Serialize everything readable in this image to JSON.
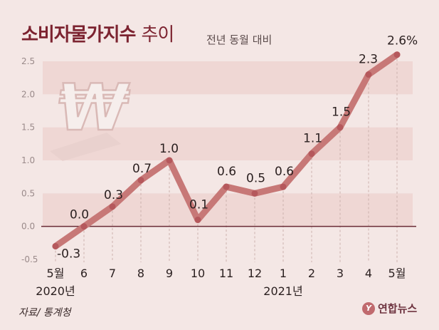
{
  "header": {
    "title_bold": "소비자물가지수",
    "title_light": "추이",
    "subtitle": "전년 동월 대비"
  },
  "footer": {
    "source": "자료/ 통계청",
    "logo": "연합뉴스"
  },
  "colors": {
    "line": "#c77877",
    "marker": "#b5585c",
    "band": "#efd7d4",
    "background": "#f4e7e5",
    "title": "#7c2330"
  },
  "icons": [
    "won-currency-icon",
    "yonhap-logo-icon"
  ],
  "chart_data": {
    "type": "line",
    "categories": [
      "5월",
      "6",
      "7",
      "8",
      "9",
      "10",
      "11",
      "12",
      "1",
      "2",
      "3",
      "4",
      "5월"
    ],
    "values": [
      -0.3,
      0.0,
      0.3,
      0.7,
      1.0,
      0.1,
      0.6,
      0.5,
      0.6,
      1.1,
      1.5,
      2.3,
      2.6
    ],
    "data_labels": [
      "-0.3",
      "0.0",
      "0.3",
      "0.7",
      "1.0",
      "0.1",
      "0.6",
      "0.5",
      "0.6",
      "1.1",
      "1.5",
      "2.3",
      "2.6%"
    ],
    "year_labels": [
      {
        "text": "2020년",
        "index": 0
      },
      {
        "text": "2021년",
        "index": 8
      }
    ],
    "yticks": [
      -0.5,
      0.0,
      0.5,
      1.0,
      1.5,
      2.0,
      2.5
    ],
    "ytick_labels": [
      "-0.5",
      "0.0",
      "0.5",
      "1.0",
      "1.5",
      "2.0",
      "2.5"
    ],
    "ylim": [
      -0.5,
      2.5
    ],
    "grid": "alternating horizontal bands"
  }
}
